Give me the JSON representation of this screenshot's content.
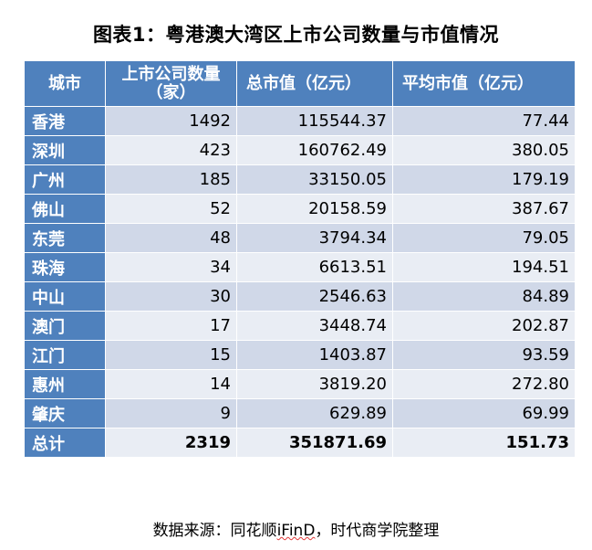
{
  "title": "图表1：粤港澳大湾区上市公司数量与市值情况",
  "table": {
    "headers": {
      "city": "城市",
      "count": "上市公司数量（家）",
      "total_cap": "总市值（亿元）",
      "avg_cap": "平均市值（亿元）"
    },
    "rows": [
      {
        "city": "香港",
        "count": "1492",
        "total_cap": "115544.37",
        "avg_cap": "77.44"
      },
      {
        "city": "深圳",
        "count": "423",
        "total_cap": "160762.49",
        "avg_cap": "380.05"
      },
      {
        "city": "广州",
        "count": "185",
        "total_cap": "33150.05",
        "avg_cap": "179.19"
      },
      {
        "city": "佛山",
        "count": "52",
        "total_cap": "20158.59",
        "avg_cap": "387.67"
      },
      {
        "city": "东莞",
        "count": "48",
        "total_cap": "3794.34",
        "avg_cap": "79.05"
      },
      {
        "city": "珠海",
        "count": "34",
        "total_cap": "6613.51",
        "avg_cap": "194.51"
      },
      {
        "city": "中山",
        "count": "30",
        "total_cap": "2546.63",
        "avg_cap": "84.89"
      },
      {
        "city": "澳门",
        "count": "17",
        "total_cap": "3448.74",
        "avg_cap": "202.87"
      },
      {
        "city": "江门",
        "count": "15",
        "total_cap": "1403.87",
        "avg_cap": "93.59"
      },
      {
        "city": "惠州",
        "count": "14",
        "total_cap": "3819.20",
        "avg_cap": "272.80"
      },
      {
        "city": "肇庆",
        "count": "9",
        "total_cap": "629.89",
        "avg_cap": "69.99"
      }
    ],
    "total": {
      "city": "总计",
      "count": "2319",
      "total_cap": "351871.69",
      "avg_cap": "151.73"
    }
  },
  "source": {
    "prefix": "数据来源：同花顺",
    "brand": "iFinD",
    "suffix": "，时代商学院整理"
  },
  "colors": {
    "header_blue": "#4f81bd",
    "row_band_dark": "#d0d8e8",
    "row_band_light": "#e9edf4",
    "spellcheck_underline": "#e23b3b"
  }
}
